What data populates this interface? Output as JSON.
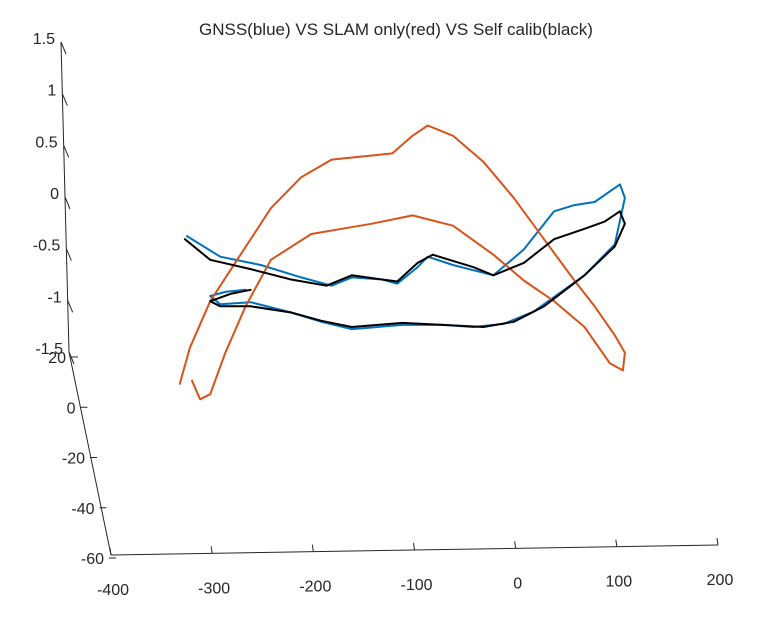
{
  "chart_data": {
    "type": "line",
    "projection": "3d",
    "title": "GNSS(blue) VS SLAM only(red) VS Self calib(black)",
    "xlabel": "",
    "ylabel": "",
    "zlabel": "",
    "x_ticks": [
      "-400",
      "-300",
      "-200",
      "-100",
      "0",
      "100",
      "200"
    ],
    "y_ticks": [
      "20",
      "0",
      "-20",
      "-40",
      "-60"
    ],
    "z_ticks": [
      "1.5",
      "1",
      "0.5",
      "0",
      "-0.5",
      "-1",
      "-1.5"
    ],
    "xlim": [
      -400,
      200
    ],
    "ylim": [
      -60,
      20
    ],
    "zlim": [
      -1.5,
      1.5
    ],
    "grid": false,
    "legend": "none",
    "series": [
      {
        "color": "#0072BD",
        "loop": [
          [
            -323,
            -0.32
          ],
          [
            -290,
            -0.52
          ],
          [
            -250,
            -0.6
          ],
          [
            -210,
            -0.72
          ],
          [
            -180,
            -0.8
          ],
          [
            -160,
            -0.72
          ],
          [
            -130,
            -0.74
          ],
          [
            -115,
            -0.78
          ],
          [
            -95,
            -0.62
          ],
          [
            -85,
            -0.52
          ],
          [
            -60,
            -0.6
          ],
          [
            -40,
            -0.65
          ],
          [
            -20,
            -0.7
          ],
          [
            10,
            -0.45
          ],
          [
            40,
            -0.08
          ],
          [
            60,
            -0.02
          ],
          [
            80,
            0.01
          ],
          [
            105,
            0.18
          ],
          [
            110,
            0.05
          ],
          [
            100,
            -0.4
          ],
          [
            70,
            -0.7
          ],
          [
            20,
            -1.05
          ],
          [
            -10,
            -1.17
          ],
          [
            -40,
            -1.2
          ],
          [
            -70,
            -1.18
          ],
          [
            -110,
            -1.18
          ],
          [
            -160,
            -1.22
          ],
          [
            -190,
            -1.15
          ],
          [
            -220,
            -1.06
          ],
          [
            -260,
            -0.96
          ],
          [
            -290,
            -0.98
          ],
          [
            -300,
            -0.9
          ],
          [
            -285,
            -0.86
          ],
          [
            -265,
            -0.84
          ]
        ]
      },
      {
        "color": "#D95319",
        "loop": [
          [
            -330,
            -1.75
          ],
          [
            -320,
            -1.4
          ],
          [
            -300,
            -0.95
          ],
          [
            -270,
            -0.5
          ],
          [
            -240,
            -0.05
          ],
          [
            -210,
            0.25
          ],
          [
            -180,
            0.42
          ],
          [
            -150,
            0.45
          ],
          [
            -120,
            0.48
          ],
          [
            -100,
            0.65
          ],
          [
            -85,
            0.75
          ],
          [
            -60,
            0.65
          ],
          [
            -30,
            0.4
          ],
          [
            0,
            0.05
          ],
          [
            30,
            -0.35
          ],
          [
            60,
            -0.75
          ],
          [
            80,
            -1.0
          ],
          [
            100,
            -1.28
          ],
          [
            110,
            -1.45
          ],
          [
            108,
            -1.62
          ],
          [
            95,
            -1.55
          ],
          [
            70,
            -1.2
          ],
          [
            40,
            -0.95
          ],
          [
            10,
            -0.75
          ],
          [
            -20,
            -0.5
          ],
          [
            -60,
            -0.22
          ],
          [
            -100,
            -0.12
          ],
          [
            -140,
            -0.2
          ],
          [
            -170,
            -0.25
          ],
          [
            -200,
            -0.3
          ],
          [
            -240,
            -0.55
          ],
          [
            -265,
            -1.0
          ],
          [
            -285,
            -1.45
          ],
          [
            -300,
            -1.85
          ],
          [
            -310,
            -1.9
          ],
          [
            -318,
            -1.72
          ]
        ]
      },
      {
        "color": "#000000",
        "loop": [
          [
            -325,
            -0.35
          ],
          [
            -300,
            -0.55
          ],
          [
            -260,
            -0.64
          ],
          [
            -220,
            -0.74
          ],
          [
            -185,
            -0.8
          ],
          [
            -160,
            -0.7
          ],
          [
            -130,
            -0.74
          ],
          [
            -115,
            -0.76
          ],
          [
            -95,
            -0.58
          ],
          [
            -80,
            -0.5
          ],
          [
            -60,
            -0.56
          ],
          [
            -40,
            -0.62
          ],
          [
            -20,
            -0.7
          ],
          [
            10,
            -0.58
          ],
          [
            40,
            -0.35
          ],
          [
            70,
            -0.25
          ],
          [
            90,
            -0.18
          ],
          [
            105,
            -0.08
          ],
          [
            110,
            -0.2
          ],
          [
            100,
            -0.42
          ],
          [
            70,
            -0.7
          ],
          [
            30,
            -1.0
          ],
          [
            0,
            -1.15
          ],
          [
            -30,
            -1.2
          ],
          [
            -70,
            -1.18
          ],
          [
            -110,
            -1.16
          ],
          [
            -160,
            -1.2
          ],
          [
            -190,
            -1.14
          ],
          [
            -220,
            -1.06
          ],
          [
            -260,
            -1.0
          ],
          [
            -290,
            -1.0
          ],
          [
            -300,
            -0.95
          ],
          [
            -280,
            -0.88
          ],
          [
            -260,
            -0.84
          ]
        ]
      }
    ]
  }
}
